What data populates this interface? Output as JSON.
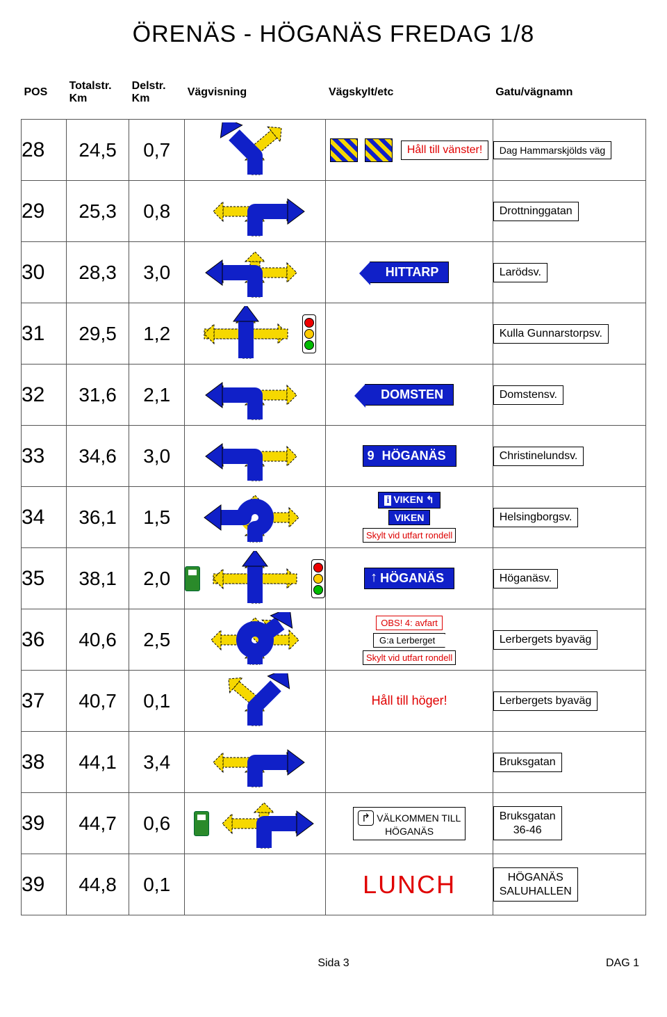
{
  "title": "ÖRENÄS - HÖGANÄS  FREDAG  1/8",
  "colors": {
    "blue": "#1020c8",
    "yellow": "#f6d800",
    "red": "#e00000",
    "green": "#2a8a2a"
  },
  "headers": {
    "pos": "POS",
    "total": "Totalstr. Km",
    "del": "Delstr. Km",
    "dir": "Vägvisning",
    "sign": "Vägskylt/etc",
    "name": "Gatu/vägnamn"
  },
  "rows": [
    {
      "pos": "28",
      "total": "24,5",
      "del": "0,7",
      "dir": {
        "type": "y-split-left",
        "traffic": false,
        "marker": false
      },
      "sign": {
        "type": "hazard-text",
        "text": "Håll till vänster!",
        "text_color": "#e00000"
      },
      "name": "Dag Hammarskjölds väg",
      "name_size": "small"
    },
    {
      "pos": "29",
      "total": "25,3",
      "del": "0,8",
      "dir": {
        "type": "t-right",
        "traffic": false
      },
      "sign": {
        "type": "none"
      },
      "name": "Drottninggatan"
    },
    {
      "pos": "30",
      "total": "28,3",
      "del": "3,0",
      "dir": {
        "type": "t-left-stub",
        "traffic": false
      },
      "sign": {
        "type": "blue-left",
        "text": "HITTARP"
      },
      "name": "Larödsv."
    },
    {
      "pos": "31",
      "total": "29,5",
      "del": "1,2",
      "dir": {
        "type": "cross-up",
        "traffic": true
      },
      "sign": {
        "type": "none"
      },
      "name": "Kulla Gunnarstorpsv."
    },
    {
      "pos": "32",
      "total": "31,6",
      "del": "2,1",
      "dir": {
        "type": "t-left",
        "traffic": false
      },
      "sign": {
        "type": "blue-left",
        "text": "DOMSTEN"
      },
      "name": "Domstensv."
    },
    {
      "pos": "33",
      "total": "34,6",
      "del": "3,0",
      "dir": {
        "type": "t-left",
        "traffic": false
      },
      "sign": {
        "type": "blue-num",
        "num": "9",
        "text": "HÖGANÄS"
      },
      "name": "Christinelundsv."
    },
    {
      "pos": "34",
      "total": "36,1",
      "del": "1,5",
      "dir": {
        "type": "roundabout-left",
        "traffic": false
      },
      "sign": {
        "type": "viken-stack",
        "line1": {
          "text": "VIKEN",
          "info": true,
          "hook": true
        },
        "line2": {
          "text": "VIKEN"
        },
        "caption": "Skylt vid utfart rondell"
      },
      "name": "Helsingborgsv."
    },
    {
      "pos": "35",
      "total": "38,1",
      "del": "2,0",
      "dir": {
        "type": "cross-up",
        "traffic": true,
        "marker": true
      },
      "sign": {
        "type": "blue-up",
        "text": "HÖGANÄS"
      },
      "name": "Höganäsv."
    },
    {
      "pos": "36",
      "total": "40,6",
      "del": "2,5",
      "dir": {
        "type": "roundabout-right",
        "traffic": false
      },
      "sign": {
        "type": "obs-stack",
        "obs": "OBS!   4: avfart",
        "flag": "G:a Lerberget",
        "caption": "Skylt vid utfart rondell"
      },
      "name": "Lerbergets byaväg"
    },
    {
      "pos": "37",
      "total": "40,7",
      "del": "0,1",
      "dir": {
        "type": "y-split-right",
        "traffic": false
      },
      "sign": {
        "type": "red-text",
        "text": "Håll till höger!"
      },
      "name": "Lerbergets byaväg"
    },
    {
      "pos": "38",
      "total": "44,1",
      "del": "3,4",
      "dir": {
        "type": "t-right",
        "traffic": false
      },
      "sign": {
        "type": "none"
      },
      "name": "Bruksgatan"
    },
    {
      "pos": "39",
      "total": "44,7",
      "del": "0,6",
      "dir": {
        "type": "cross-right",
        "traffic": false,
        "marker": true
      },
      "sign": {
        "type": "welcome",
        "line1": "VÄLKOMMEN TILL",
        "line2": "HÖGANÄS"
      },
      "name": "Bruksgatan\n36-46",
      "name_multi": true
    },
    {
      "pos": "39",
      "total": "44,8",
      "del": "0,1",
      "dir": {
        "type": "none"
      },
      "sign": {
        "type": "lunch",
        "text": "LUNCH"
      },
      "name": "HÖGANÄS\nSALUHALLEN",
      "name_multi": true
    }
  ],
  "footer": {
    "left": "",
    "center": "Sida 3",
    "right": "DAG 1"
  }
}
